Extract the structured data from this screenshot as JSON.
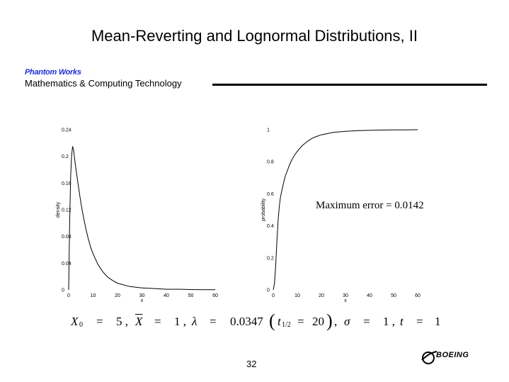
{
  "slide": {
    "title": "Mean-Reverting and Lognormal Distributions, II",
    "brand": "Phantom Works",
    "org": "Mathematics & Computing Technology",
    "error_note": "Maximum error  =  0.0142",
    "page_number": "32",
    "logo": "BOEING"
  },
  "params": {
    "x0_sym": "X",
    "x0_sub": "0",
    "eq1": "=",
    "x0_val": "5 ,",
    "xbar_sym": "X",
    "eq2": "=",
    "xbar_val": "1 ,",
    "lambda_sym": "λ",
    "eq3": "=",
    "lambda_val": "0.0347",
    "paren_open": "(",
    "t_half_sym": "t",
    "t_half_sub": "1/2",
    "eq4": "=",
    "t_half_val": "20",
    "paren_close": ")",
    "comma1": ",",
    "sigma_sym": "σ",
    "eq5": "=",
    "sigma_val": "1 ,",
    "t_sym": "t",
    "eq6": "=",
    "t_val": "1"
  },
  "chart_data": [
    {
      "type": "line",
      "xlabel": "x",
      "ylabel": "density",
      "xlim": [
        0,
        60
      ],
      "ylim": [
        0,
        0.24
      ],
      "x_ticks": [
        "0",
        "10",
        "20",
        "30",
        "40",
        "50",
        "60"
      ],
      "y_ticks": [
        "0",
        "0.04",
        "0.08",
        "0.12",
        "0.16",
        "0.2",
        "0.24"
      ],
      "x": [
        0,
        0.4,
        0.8,
        1.2,
        1.6,
        2,
        2.5,
        3,
        4,
        5,
        6,
        7,
        8,
        9,
        10,
        12,
        14,
        16,
        18,
        20,
        25,
        30,
        35,
        40,
        45,
        50,
        55,
        60
      ],
      "y": [
        0,
        0.1,
        0.17,
        0.2,
        0.215,
        0.21,
        0.195,
        0.18,
        0.155,
        0.13,
        0.11,
        0.092,
        0.077,
        0.064,
        0.054,
        0.038,
        0.027,
        0.019,
        0.014,
        0.01,
        0.005,
        0.003,
        0.002,
        0.001,
        0.001,
        0.0005,
        0.0003,
        0.0002
      ]
    },
    {
      "type": "line",
      "xlabel": "x",
      "ylabel": "probability",
      "xlim": [
        0,
        60
      ],
      "ylim": [
        0,
        1
      ],
      "x_ticks": [
        "0",
        "10",
        "20",
        "30",
        "40",
        "50",
        "60"
      ],
      "y_ticks": [
        "0",
        "0.2",
        "0.4",
        "0.6",
        "0.8",
        "1"
      ],
      "x": [
        0,
        0.5,
        1,
        1.5,
        2,
        2.5,
        3,
        4,
        5,
        6,
        7,
        8,
        9,
        10,
        12,
        14,
        16,
        18,
        20,
        25,
        30,
        35,
        40,
        45,
        50,
        55,
        60
      ],
      "y": [
        0,
        0.04,
        0.15,
        0.3,
        0.43,
        0.52,
        0.58,
        0.65,
        0.71,
        0.75,
        0.79,
        0.82,
        0.845,
        0.865,
        0.9,
        0.925,
        0.945,
        0.958,
        0.968,
        0.983,
        0.99,
        0.994,
        0.996,
        0.998,
        0.999,
        0.999,
        1
      ]
    }
  ]
}
